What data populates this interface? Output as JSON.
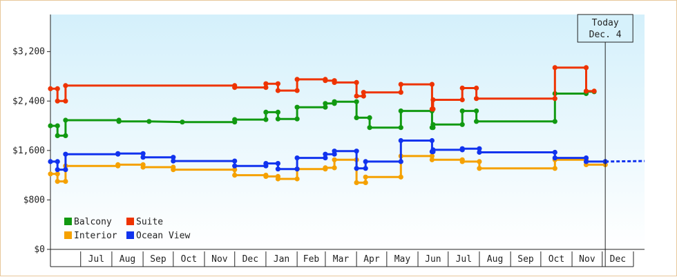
{
  "chart_data": {
    "type": "line",
    "title": "",
    "xlabel": "",
    "ylabel": "",
    "y_ticks": [
      "$0",
      "$800",
      "$1,600",
      "$2,400",
      "$3,200"
    ],
    "ylim": [
      0,
      3800
    ],
    "x_range": [
      "2013-06-01",
      "2015-01-12"
    ],
    "month_labels": [
      "Jul",
      "Aug",
      "Sep",
      "Oct",
      "Nov",
      "Dec",
      "Jan",
      "Feb",
      "Mar",
      "Apr",
      "May",
      "Jun",
      "Jul",
      "Aug",
      "Sep",
      "Oct",
      "Nov",
      "Dec"
    ],
    "month_starts": [
      "2013-07-01",
      "2013-08-01",
      "2013-09-01",
      "2013-10-01",
      "2013-11-01",
      "2013-12-01",
      "2014-01-01",
      "2014-02-01",
      "2014-03-01",
      "2014-04-01",
      "2014-05-01",
      "2014-06-01",
      "2014-07-01",
      "2014-08-01",
      "2014-09-01",
      "2014-10-01",
      "2014-11-01",
      "2014-12-01",
      "2015-01-01"
    ],
    "today": {
      "label_line1": "Today",
      "label_line2": "Dec. 4",
      "date": "2014-12-04"
    },
    "legend": {
      "position": "bottom-left"
    },
    "grid": false,
    "series": [
      {
        "name": "Balcony",
        "color": "#119911",
        "points": [
          [
            "2013-06-01",
            2000
          ],
          [
            "2013-06-08",
            2000
          ],
          [
            "2013-06-08",
            1840
          ],
          [
            "2013-06-16",
            1840
          ],
          [
            "2013-06-16",
            2090
          ],
          [
            "2013-08-08",
            2090
          ],
          [
            "2013-08-08",
            2070
          ],
          [
            "2013-09-07",
            2070
          ],
          [
            "2013-10-10",
            2060
          ],
          [
            "2013-12-01",
            2060
          ],
          [
            "2013-12-01",
            2100
          ],
          [
            "2014-01-01",
            2100
          ],
          [
            "2014-01-01",
            2220
          ],
          [
            "2014-01-13",
            2220
          ],
          [
            "2014-01-13",
            2110
          ],
          [
            "2014-02-01",
            2110
          ],
          [
            "2014-02-01",
            2300
          ],
          [
            "2014-03-01",
            2300
          ],
          [
            "2014-03-01",
            2360
          ],
          [
            "2014-03-10",
            2360
          ],
          [
            "2014-03-10",
            2390
          ],
          [
            "2014-04-01",
            2390
          ],
          [
            "2014-04-01",
            2130
          ],
          [
            "2014-04-14",
            2130
          ],
          [
            "2014-04-14",
            1970
          ],
          [
            "2014-05-15",
            1970
          ],
          [
            "2014-05-15",
            2240
          ],
          [
            "2014-06-15",
            2240
          ],
          [
            "2014-06-15",
            1970
          ],
          [
            "2014-06-16",
            1970
          ],
          [
            "2014-06-16",
            2020
          ],
          [
            "2014-07-15",
            2020
          ],
          [
            "2014-07-15",
            2240
          ],
          [
            "2014-07-29",
            2240
          ],
          [
            "2014-07-29",
            2070
          ],
          [
            "2014-10-15",
            2070
          ],
          [
            "2014-10-15",
            2520
          ],
          [
            "2014-11-15",
            2520
          ],
          [
            "2014-11-15",
            2550
          ],
          [
            "2014-11-23",
            2550
          ]
        ]
      },
      {
        "name": "Suite",
        "color": "#ee3300",
        "points": [
          [
            "2013-06-01",
            2600
          ],
          [
            "2013-06-08",
            2600
          ],
          [
            "2013-06-08",
            2400
          ],
          [
            "2013-06-16",
            2400
          ],
          [
            "2013-06-16",
            2650
          ],
          [
            "2013-12-01",
            2650
          ],
          [
            "2013-12-01",
            2620
          ],
          [
            "2014-01-01",
            2620
          ],
          [
            "2014-01-01",
            2680
          ],
          [
            "2014-01-13",
            2680
          ],
          [
            "2014-01-13",
            2570
          ],
          [
            "2014-02-01",
            2570
          ],
          [
            "2014-02-01",
            2750
          ],
          [
            "2014-03-01",
            2750
          ],
          [
            "2014-03-01",
            2730
          ],
          [
            "2014-03-10",
            2730
          ],
          [
            "2014-03-10",
            2700
          ],
          [
            "2014-04-01",
            2700
          ],
          [
            "2014-04-01",
            2480
          ],
          [
            "2014-04-08",
            2480
          ],
          [
            "2014-04-08",
            2540
          ],
          [
            "2014-05-15",
            2540
          ],
          [
            "2014-05-15",
            2670
          ],
          [
            "2014-06-15",
            2670
          ],
          [
            "2014-06-15",
            2270
          ],
          [
            "2014-06-16",
            2270
          ],
          [
            "2014-06-16",
            2420
          ],
          [
            "2014-07-15",
            2420
          ],
          [
            "2014-07-15",
            2610
          ],
          [
            "2014-07-29",
            2610
          ],
          [
            "2014-07-29",
            2440
          ],
          [
            "2014-10-15",
            2440
          ],
          [
            "2014-10-15",
            2940
          ],
          [
            "2014-11-15",
            2940
          ],
          [
            "2014-11-15",
            2560
          ],
          [
            "2014-11-23",
            2560
          ]
        ]
      },
      {
        "name": "Interior",
        "color": "#f5a100",
        "points": [
          [
            "2013-06-01",
            1220
          ],
          [
            "2013-06-08",
            1220
          ],
          [
            "2013-06-08",
            1100
          ],
          [
            "2013-06-16",
            1100
          ],
          [
            "2013-06-16",
            1350
          ],
          [
            "2013-08-07",
            1350
          ],
          [
            "2013-08-07",
            1370
          ],
          [
            "2013-09-01",
            1370
          ],
          [
            "2013-09-01",
            1330
          ],
          [
            "2013-10-01",
            1330
          ],
          [
            "2013-10-01",
            1290
          ],
          [
            "2013-12-01",
            1290
          ],
          [
            "2013-12-01",
            1200
          ],
          [
            "2014-01-01",
            1200
          ],
          [
            "2014-01-01",
            1180
          ],
          [
            "2014-01-13",
            1180
          ],
          [
            "2014-01-13",
            1140
          ],
          [
            "2014-02-01",
            1140
          ],
          [
            "2014-02-01",
            1300
          ],
          [
            "2014-03-01",
            1300
          ],
          [
            "2014-03-01",
            1320
          ],
          [
            "2014-03-10",
            1320
          ],
          [
            "2014-03-10",
            1450
          ],
          [
            "2014-04-01",
            1450
          ],
          [
            "2014-04-01",
            1080
          ],
          [
            "2014-04-10",
            1080
          ],
          [
            "2014-04-10",
            1170
          ],
          [
            "2014-05-15",
            1170
          ],
          [
            "2014-05-15",
            1510
          ],
          [
            "2014-06-15",
            1510
          ],
          [
            "2014-06-15",
            1450
          ],
          [
            "2014-07-15",
            1450
          ],
          [
            "2014-07-15",
            1420
          ],
          [
            "2014-08-01",
            1420
          ],
          [
            "2014-08-01",
            1310
          ],
          [
            "2014-10-15",
            1310
          ],
          [
            "2014-10-15",
            1450
          ],
          [
            "2014-11-15",
            1450
          ],
          [
            "2014-11-15",
            1370
          ],
          [
            "2014-12-04",
            1370
          ]
        ]
      },
      {
        "name": "Ocean View",
        "color": "#1133ee",
        "points": [
          [
            "2013-06-01",
            1420
          ],
          [
            "2013-06-08",
            1420
          ],
          [
            "2013-06-08",
            1290
          ],
          [
            "2013-06-16",
            1290
          ],
          [
            "2013-06-16",
            1540
          ],
          [
            "2013-08-07",
            1540
          ],
          [
            "2013-08-07",
            1550
          ],
          [
            "2013-09-01",
            1550
          ],
          [
            "2013-09-01",
            1490
          ],
          [
            "2013-10-01",
            1490
          ],
          [
            "2013-10-01",
            1430
          ],
          [
            "2013-12-01",
            1430
          ],
          [
            "2013-12-01",
            1350
          ],
          [
            "2014-01-01",
            1350
          ],
          [
            "2014-01-01",
            1390
          ],
          [
            "2014-01-13",
            1390
          ],
          [
            "2014-01-13",
            1300
          ],
          [
            "2014-02-01",
            1300
          ],
          [
            "2014-02-01",
            1480
          ],
          [
            "2014-03-01",
            1480
          ],
          [
            "2014-03-01",
            1540
          ],
          [
            "2014-03-10",
            1540
          ],
          [
            "2014-03-10",
            1590
          ],
          [
            "2014-04-01",
            1590
          ],
          [
            "2014-04-01",
            1310
          ],
          [
            "2014-04-10",
            1310
          ],
          [
            "2014-04-10",
            1420
          ],
          [
            "2014-05-15",
            1420
          ],
          [
            "2014-05-15",
            1760
          ],
          [
            "2014-06-15",
            1760
          ],
          [
            "2014-06-15",
            1580
          ],
          [
            "2014-06-16",
            1580
          ],
          [
            "2014-06-16",
            1610
          ],
          [
            "2014-07-15",
            1610
          ],
          [
            "2014-07-15",
            1630
          ],
          [
            "2014-08-01",
            1630
          ],
          [
            "2014-08-01",
            1570
          ],
          [
            "2014-10-15",
            1570
          ],
          [
            "2014-10-15",
            1480
          ],
          [
            "2014-11-15",
            1480
          ],
          [
            "2014-11-15",
            1420
          ],
          [
            "2014-12-04",
            1420
          ]
        ],
        "projection": [
          [
            "2014-12-04",
            1420
          ],
          [
            "2015-01-12",
            1430
          ]
        ]
      }
    ]
  }
}
